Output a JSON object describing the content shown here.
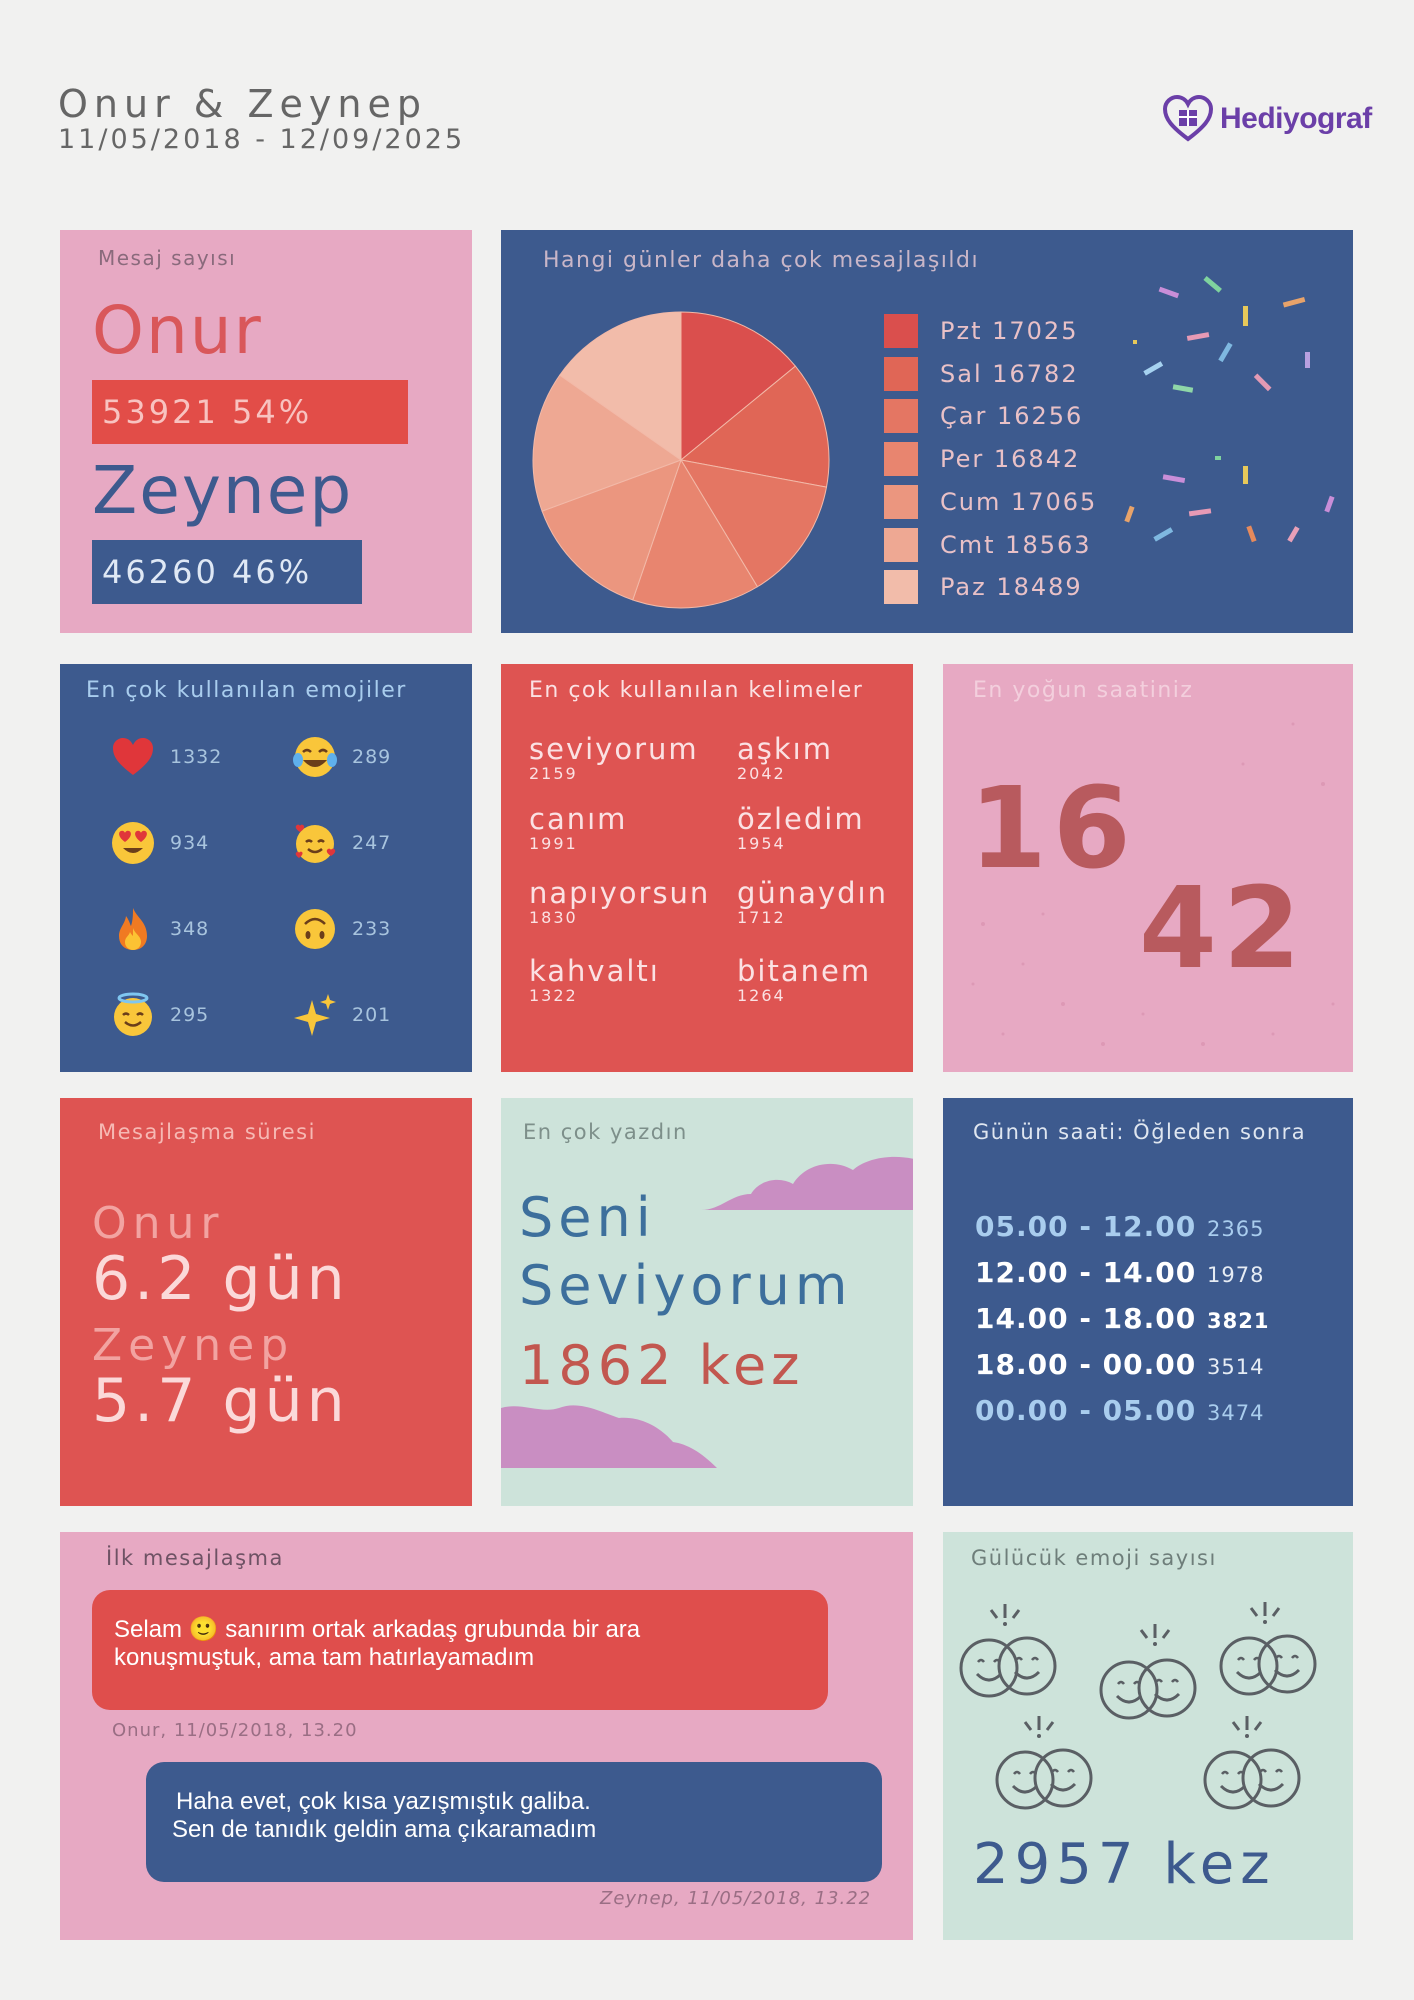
{
  "header": {
    "names": "Onur & Zeynep",
    "dates": "11/05/2018 - 12/09/2025",
    "logo": "Hediyograf",
    "logo_icon": "heart-gift-icon"
  },
  "message_count": {
    "title": "Mesaj sayısı",
    "person1": {
      "name": "Onur",
      "value": "53921 54%",
      "fraction": 0.54
    },
    "person2": {
      "name": "Zeynep",
      "value": "46260 46%",
      "fraction": 0.46
    }
  },
  "days": {
    "title": "Hangi günler daha çok mesajlaşıldı",
    "legend": [
      "Pzt 17025",
      "Sal 16782",
      "Çar 16256",
      "Per 16842",
      "Cum 17065",
      "Cmt 18563",
      "Paz 18489"
    ],
    "colors": [
      "#da4f4d",
      "#e06656",
      "#e47663",
      "#e8856f",
      "#eb967f",
      "#eea893",
      "#f2bcaa"
    ]
  },
  "chart_data": {
    "type": "pie",
    "categories": [
      "Pzt",
      "Sal",
      "Çar",
      "Per",
      "Cum",
      "Cmt",
      "Paz"
    ],
    "values": [
      17025,
      16782,
      16256,
      16842,
      17065,
      18563,
      18489
    ],
    "title": "Hangi günler daha çok mesajlaşıldı",
    "legend": "right"
  },
  "emojis": {
    "title": "En çok kullanılan emojiler",
    "items": [
      {
        "icon": "red-heart-icon",
        "count": "1332"
      },
      {
        "icon": "tears-of-joy-face-icon",
        "count": "289"
      },
      {
        "icon": "heart-eyes-face-icon",
        "count": "934"
      },
      {
        "icon": "smiling-face-with-hearts-icon",
        "count": "247"
      },
      {
        "icon": "fire-icon",
        "count": "348"
      },
      {
        "icon": "upside-down-face-icon",
        "count": "233"
      },
      {
        "icon": "halo-smile-face-icon",
        "count": "295"
      },
      {
        "icon": "sparkles-icon",
        "count": "201"
      }
    ]
  },
  "words": {
    "title": "En çok kullanılan kelimeler",
    "items": [
      {
        "word": "seviyorum",
        "count": "2159"
      },
      {
        "word": "aşkım",
        "count": "2042"
      },
      {
        "word": "canım",
        "count": "1991"
      },
      {
        "word": "özledim",
        "count": "1954"
      },
      {
        "word": "napıyorsun",
        "count": "1830"
      },
      {
        "word": "günaydın",
        "count": "1712"
      },
      {
        "word": "kahvaltı",
        "count": "1322"
      },
      {
        "word": "bitanem",
        "count": "1264"
      }
    ]
  },
  "busiest": {
    "title": "En yoğun saatiniz",
    "hour": "16",
    "minute": "42"
  },
  "duration": {
    "title": "Mesajlaşma süresi",
    "person1": {
      "name": "Onur",
      "value": "6.2 gün"
    },
    "person2": {
      "name": "Zeynep",
      "value": "5.7 gün"
    }
  },
  "most_written": {
    "title": "En çok yazdın",
    "line1": "Seni",
    "line2": "Seviyorum",
    "count": "1862 kez"
  },
  "time_of_day": {
    "title": "Günün saati: Öğleden sonra",
    "rows": [
      {
        "range": "05.00 - 12.00",
        "count": "2365"
      },
      {
        "range": "12.00 - 14.00",
        "count": "1978"
      },
      {
        "range": "14.00 - 18.00",
        "count": "3821"
      },
      {
        "range": "18.00 - 00.00",
        "count": "3514"
      },
      {
        "range": "00.00 - 05.00",
        "count": "3474"
      }
    ]
  },
  "first_messages": {
    "title": "İlk mesajlaşma",
    "msg1": {
      "line1": "Selam 🙂 sanırım ortak arkadaş grubunda bir ara",
      "line2": "konuşmuştuk, ama tam hatırlayamadım",
      "meta": "Onur, 11/05/2018, 13.20"
    },
    "msg2": {
      "line1": "Haha evet, çok kısa yazışmıştık galiba.",
      "line2": "Sen de tanıdık geldin ama çıkaramadım",
      "meta": "Zeynep, 11/05/2018, 13.22"
    }
  },
  "smiles": {
    "title": "Gülücük emoji sayısı",
    "count": "2957 kez",
    "icon": "smiley-faces-icon"
  }
}
